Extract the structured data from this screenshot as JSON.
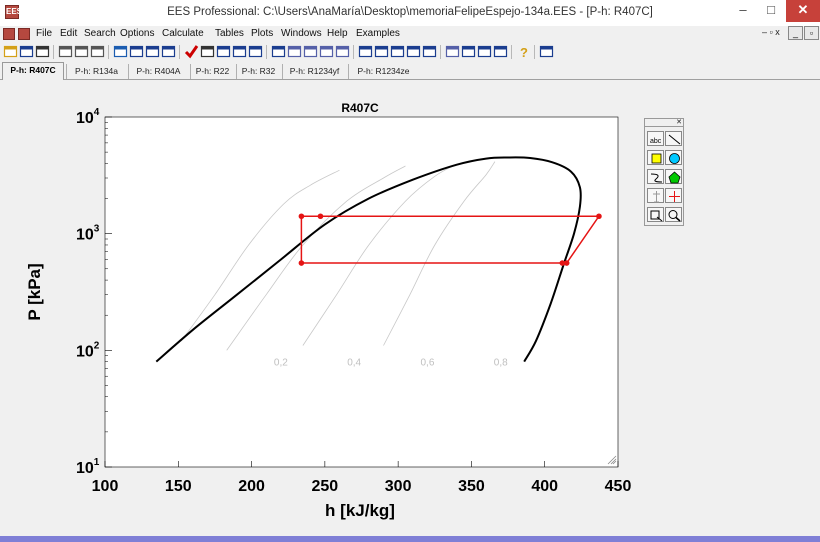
{
  "window": {
    "title": "EES Professional:  C:\\Users\\AnaMaría\\Desktop\\memoriaFelipeEspejo-134a.EES - [P-h: R407C]",
    "app_icon": "EES"
  },
  "menu": {
    "items": [
      "File",
      "Edit",
      "Search",
      "Options",
      "Calculate",
      "Tables",
      "Plots",
      "Windows",
      "Help",
      "Examples"
    ]
  },
  "tabs": [
    {
      "label": "P-h: R407C",
      "active": true
    },
    {
      "label": "P-h: R134a"
    },
    {
      "label": "P-h: R404A"
    },
    {
      "label": "P-h: R22"
    },
    {
      "label": "P-h: R32"
    },
    {
      "label": "P-h: R1234yf"
    },
    {
      "label": "P-h: R1234ze"
    }
  ],
  "toolbar_icons": [
    "open-icon",
    "save-icon",
    "print-icon",
    "find-icon",
    "replace-icon",
    "check-icon",
    "solve-icon",
    "equations-window-icon",
    "formatted-equations-icon",
    "solution-window-icon",
    "checkmark-icon",
    "calculator-icon",
    "parametric-table-icon",
    "lookup-table-icon",
    "plot-window-icon",
    "table-icon",
    "plot-icon",
    "plot-2-icon",
    "plot-3-icon",
    "plot-4-icon",
    "window-1-icon",
    "window-2-icon",
    "window-3-icon",
    "window-4-icon",
    "arrays-icon",
    "diagram-icon",
    "report-icon",
    "units-icon",
    "integral-icon",
    "help-icon",
    "info-icon"
  ],
  "palette": {
    "buttons": [
      "text-tool-icon",
      "line-tool-icon",
      "square-tool-icon",
      "circle-tool-icon",
      "arc-tool-icon",
      "polygon-tool-icon",
      "move-tool-icon",
      "crosshair-tool-icon",
      "export-tool-icon",
      "zoom-tool-icon"
    ]
  },
  "chart_data": {
    "type": "line",
    "title": "R407C",
    "xlabel": "h [kJ/kg]",
    "ylabel": "P [kPa]",
    "xlim": [
      100,
      450
    ],
    "ylim": [
      10,
      10000
    ],
    "y_scale": "log",
    "x_ticks": [
      "100",
      "150",
      "200",
      "250",
      "300",
      "350",
      "400",
      "450"
    ],
    "y_ticks": [
      {
        "base": "10",
        "exp": "1",
        "value": 10
      },
      {
        "base": "10",
        "exp": "2",
        "value": 100
      },
      {
        "base": "10",
        "exp": "3",
        "value": 1000
      },
      {
        "base": "10",
        "exp": "4",
        "value": 10000
      }
    ],
    "quality_labels": [
      {
        "text": "0,2",
        "h": 220,
        "p": 80
      },
      {
        "text": "0,4",
        "h": 270,
        "p": 80
      },
      {
        "text": "0,6",
        "h": 320,
        "p": 80
      },
      {
        "text": "0,8",
        "h": 370,
        "p": 80
      }
    ],
    "colors": {
      "dome": "#000000",
      "quality": "#c8c8c8",
      "cycle": "#e51414"
    },
    "series": [
      {
        "key": "saturation-dome",
        "values": [
          [
            135,
            80
          ],
          [
            160,
            150
          ],
          [
            190,
            300
          ],
          [
            220,
            600
          ],
          [
            250,
            1200
          ],
          [
            280,
            2000
          ],
          [
            310,
            2900
          ],
          [
            340,
            3900
          ],
          [
            360,
            4400
          ],
          [
            375,
            4500
          ],
          [
            390,
            4450
          ],
          [
            405,
            4100
          ],
          [
            418,
            3400
          ],
          [
            424,
            2500
          ],
          [
            424,
            1700
          ],
          [
            420,
            1000
          ],
          [
            413,
            550
          ],
          [
            404,
            250
          ],
          [
            394,
            120
          ],
          [
            386,
            80
          ]
        ]
      },
      {
        "key": "cycle",
        "values": [
          [
            234,
            1410
          ],
          [
            247,
            1410
          ],
          [
            437,
            1410
          ],
          [
            415,
            560
          ],
          [
            412,
            560
          ],
          [
            234,
            560
          ],
          [
            234,
            1410
          ]
        ]
      }
    ],
    "quality_lines": [
      {
        "x": 0.2,
        "values": [
          [
            152,
            120
          ],
          [
            175,
            300
          ],
          [
            198,
            800
          ],
          [
            222,
            1800
          ],
          [
            240,
            2600
          ],
          [
            260,
            3500
          ]
        ]
      },
      {
        "x": 0.4,
        "values": [
          [
            183,
            100
          ],
          [
            210,
            300
          ],
          [
            235,
            800
          ],
          [
            265,
            1900
          ],
          [
            290,
            3000
          ],
          [
            305,
            3800
          ]
        ]
      },
      {
        "x": 0.6,
        "values": [
          [
            235,
            110
          ],
          [
            258,
            300
          ],
          [
            280,
            800
          ],
          [
            305,
            1900
          ],
          [
            325,
            3100
          ],
          [
            340,
            3950
          ]
        ]
      },
      {
        "x": 0.8,
        "values": [
          [
            290,
            110
          ],
          [
            308,
            300
          ],
          [
            325,
            800
          ],
          [
            345,
            1900
          ],
          [
            360,
            3200
          ],
          [
            366,
            4150
          ]
        ]
      }
    ],
    "cycle_points": [
      [
        234,
        1410
      ],
      [
        247,
        1410
      ],
      [
        437,
        1410
      ],
      [
        415,
        560
      ],
      [
        412,
        560
      ],
      [
        234,
        560
      ]
    ]
  }
}
